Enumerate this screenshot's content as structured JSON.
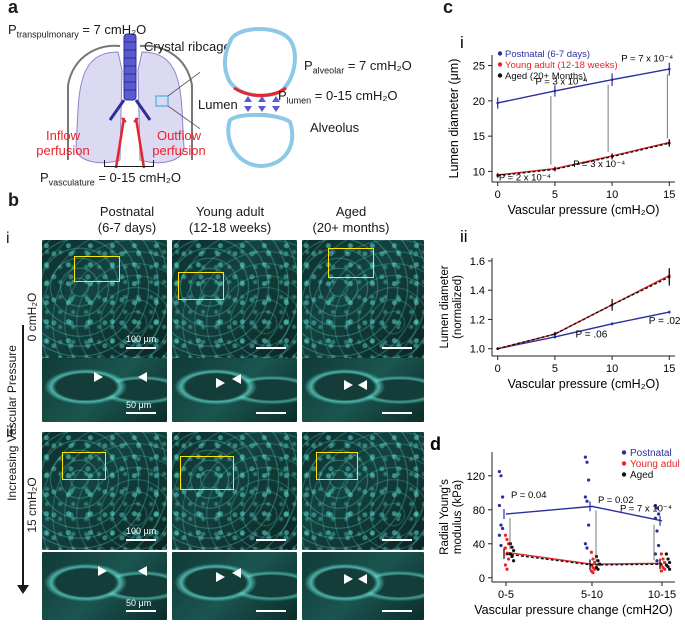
{
  "panel_a": {
    "label": "a",
    "p_transpulmonary": "P",
    "p_transpulmonary_sub": "transpulmonary",
    "p_transpulmonary_val": " = 7 cmH₂O",
    "crystal_ribcage": "Crystal ribcage",
    "p_alveolar": "P",
    "p_alveolar_sub": "alveolar",
    "p_alveolar_val": " = 7 cmH₂O",
    "lumen": "Lumen",
    "p_lumen": "P",
    "p_lumen_sub": "lumen",
    "p_lumen_val": " = 0-15 cmH₂O",
    "alveolus": "Alveolus",
    "inflow": "Inflow perfusion",
    "outflow": "Outflow perfusion",
    "p_vasc": "P",
    "p_vasc_sub": "vasculature",
    "p_vasc_val": " = 0-15 cmH₂O"
  },
  "panel_b": {
    "label": "b",
    "row_i": "i",
    "row_ii": "ii",
    "col_headers": [
      "Postnatal\n(6-7 days)",
      "Young adult\n(12-18 weeks)",
      "Aged\n(20+ months)"
    ],
    "col1_l1": "Postnatal",
    "col1_l2": "(6-7 days)",
    "col2_l1": "Young adult",
    "col2_l2": "(12-18 weeks)",
    "col3_l1": "Aged",
    "col3_l2": "(20+ months)",
    "side_label": "Increasing Vascular Pressure",
    "pressure_0": "0 cmH₂O",
    "pressure_15": "15 cmH₂O",
    "scale_100": "100 μm",
    "scale_50": "50 μm"
  },
  "panel_c": {
    "label": "c"
  },
  "chart_data": [
    {
      "id": "c-i",
      "panel": "i",
      "type": "line",
      "xlabel": "Vascular pressure (cmH₂O)",
      "ylabel": "Lumen diameter (μm)",
      "x": [
        0,
        5,
        10,
        15
      ],
      "xticks": [
        "0",
        "5",
        "10",
        "15"
      ],
      "yticks": [
        "10",
        "15",
        "20",
        "25"
      ],
      "xlim": [
        -0.5,
        15.5
      ],
      "ylim": [
        8.5,
        26.5
      ],
      "legend": [
        "Postnatal (6-7 days)",
        "Young adult (12-18 weeks)",
        "Aged (20+ Months)"
      ],
      "series": [
        {
          "name": "Postnatal (6-7 days)",
          "color": "#2b2f9e",
          "values": [
            19.7,
            21.4,
            23.0,
            24.5
          ],
          "err": [
            0.8,
            0.8,
            0.9,
            0.9
          ],
          "dash": false
        },
        {
          "name": "Young adult (12-18 weeks)",
          "color": "#e8232a",
          "values": [
            9.5,
            10.4,
            12.2,
            14.1
          ],
          "err": [
            0.3,
            0.3,
            0.4,
            0.5
          ],
          "dash": false
        },
        {
          "name": "Aged (20+ Months)",
          "color": "#111111",
          "values": [
            9.4,
            10.3,
            12.1,
            14.0
          ],
          "err": [
            0.3,
            0.3,
            0.4,
            0.5
          ],
          "dash": true
        }
      ],
      "annotations": [
        "P = 2 x 10⁻⁴",
        "P = 3 x 10⁻⁴",
        "P = 3 x 10⁻⁴",
        "P = 7 x 10⁻⁴"
      ]
    },
    {
      "id": "c-ii",
      "panel": "ii",
      "type": "line",
      "xlabel": "Vascular pressure (cmH₂O)",
      "ylabel": "Lumen diameter (normalized)",
      "x": [
        0,
        5,
        10,
        15
      ],
      "xticks": [
        "0",
        "5",
        "10",
        "15"
      ],
      "yticks": [
        "1.0",
        "1.2",
        "1.4",
        "1.6"
      ],
      "xlim": [
        -0.5,
        15.5
      ],
      "ylim": [
        0.95,
        1.62
      ],
      "series": [
        {
          "name": "Postnatal (6-7 days)",
          "color": "#2b2f9e",
          "values": [
            1.0,
            1.08,
            1.17,
            1.25
          ],
          "err": [
            0,
            0.01,
            0.01,
            0.01
          ],
          "dash": false
        },
        {
          "name": "Young adult (12-18 weeks)",
          "color": "#e8232a",
          "values": [
            1.0,
            1.1,
            1.3,
            1.5
          ],
          "err": [
            0,
            0.01,
            0.03,
            0.05
          ],
          "dash": false
        },
        {
          "name": "Aged (20+ Months)",
          "color": "#111111",
          "values": [
            1.0,
            1.1,
            1.3,
            1.49
          ],
          "err": [
            0,
            0.015,
            0.04,
            0.06
          ],
          "dash": true
        }
      ],
      "annotations": [
        "P = .06",
        "P = .02"
      ]
    },
    {
      "id": "d",
      "panel": "d",
      "type": "scatter",
      "xlabel": "Vascular pressure change (cmH2O)",
      "ylabel": "Radial Young's modulus (kPa)",
      "categories": [
        "0-5",
        "5-10",
        "10-15"
      ],
      "yticks": [
        "0",
        "40",
        "80",
        "120"
      ],
      "ylim": [
        -5,
        148
      ],
      "legend": [
        "Postnatal",
        "Young adult",
        "Aged"
      ],
      "series": [
        {
          "name": "Postnatal",
          "color": "#2b2f9e",
          "mean": [
            75,
            84,
            67
          ],
          "points": [
            [
              125,
              120,
              95,
              85,
              62,
              58,
              50,
              38
            ],
            [
              142,
              136,
              115,
              95,
              90,
              62,
              40,
              35
            ],
            [
              85,
              82,
              75,
              70,
              55,
              38,
              28,
              20
            ]
          ]
        },
        {
          "name": "Young adult",
          "color": "#e8232a",
          "mean": [
            30,
            16,
            17
          ],
          "points": [
            [
              50,
              45,
              40,
              35,
              28,
              22,
              15,
              10
            ],
            [
              30,
              22,
              18,
              15,
              12,
              10,
              8,
              6
            ],
            [
              28,
              22,
              18,
              15,
              12,
              10,
              8
            ]
          ]
        },
        {
          "name": "Aged",
          "color": "#111111",
          "mean": [
            28,
            15,
            16
          ],
          "points": [
            [
              40,
              36,
              32,
              28,
              25,
              20
            ],
            [
              25,
              20,
              16,
              12,
              10
            ],
            [
              28,
              22,
              18,
              15,
              13,
              10
            ]
          ]
        }
      ],
      "annotations": [
        "P = 0.04",
        "P = 0.02",
        "P = 7 x 10⁻⁴"
      ]
    }
  ]
}
